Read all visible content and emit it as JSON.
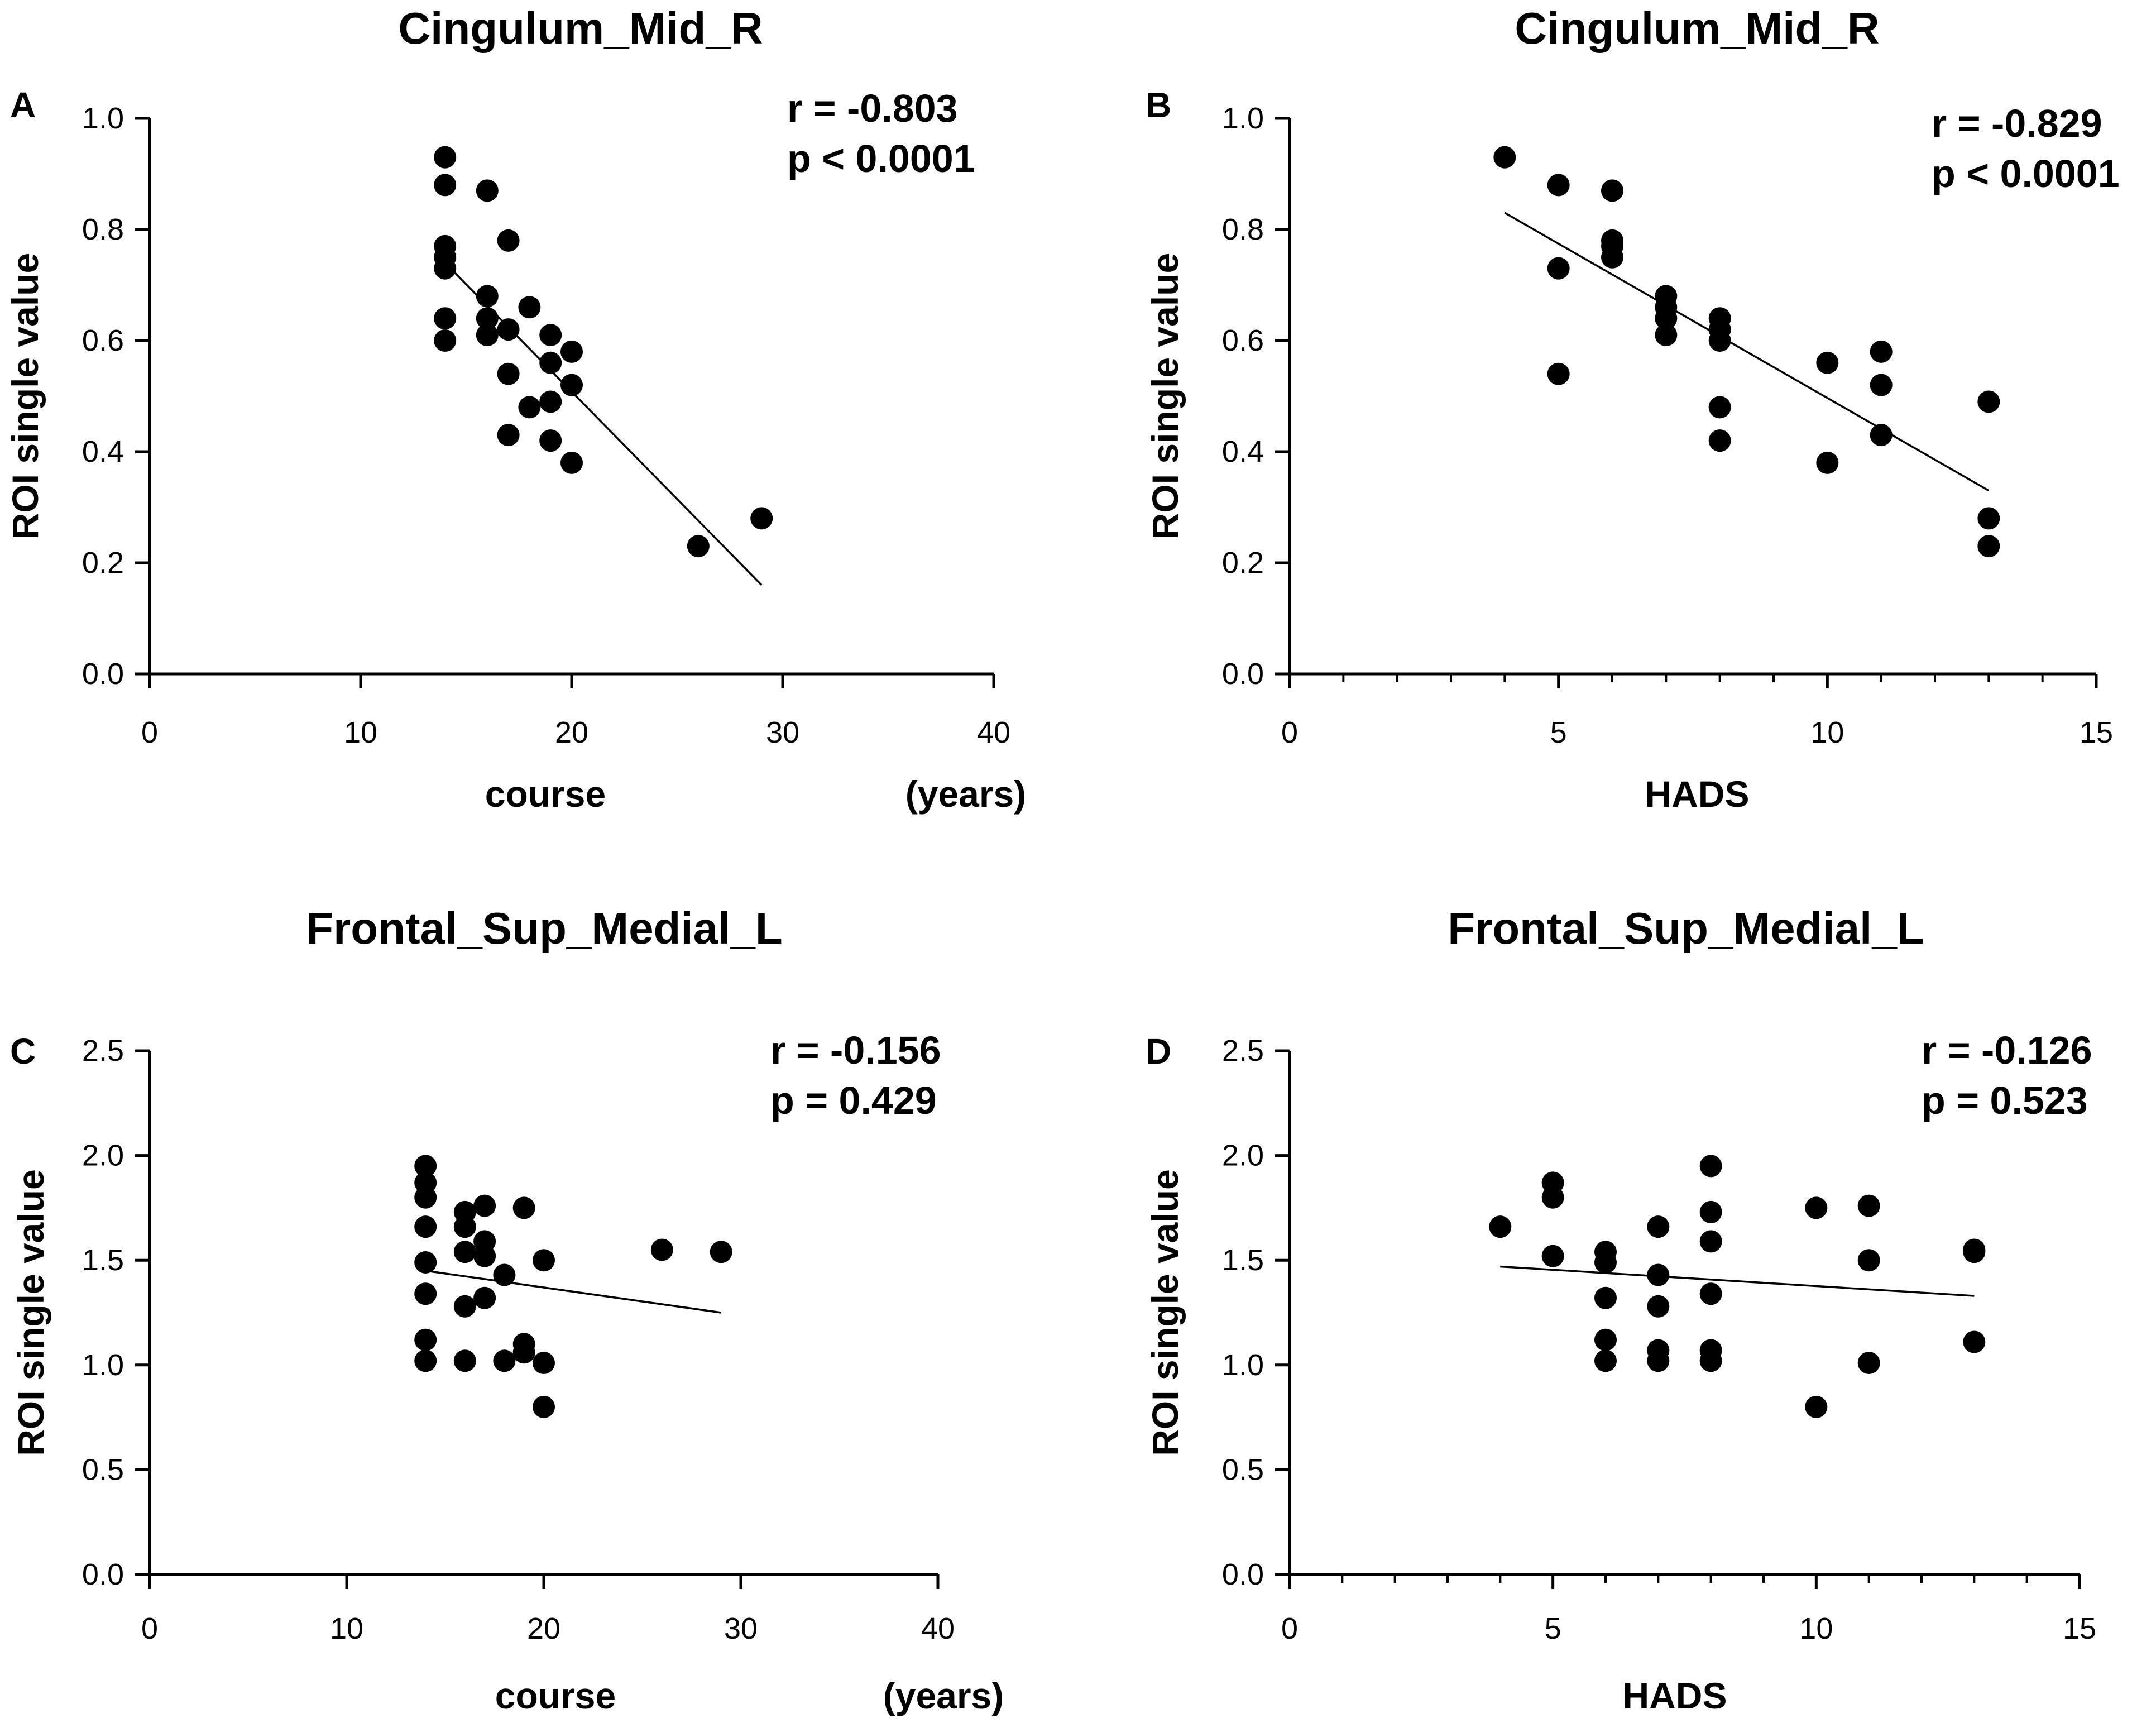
{
  "figure": {
    "style": {
      "point_color": "#000000",
      "line_color": "#000000",
      "background": "#ffffff"
    }
  },
  "chart_data": [
    {
      "type": "scatter",
      "panel": "A",
      "title": "Cingulum_Mid_R",
      "xlabel": "course",
      "xunit": "(years)",
      "ylabel": "ROI single value",
      "xlim": [
        0,
        40
      ],
      "ylim": [
        0,
        1.0
      ],
      "xticks": [
        0,
        10,
        20,
        30,
        40
      ],
      "xtick_labels": [
        "0",
        "10",
        "20",
        "30",
        "40"
      ],
      "yticks": [
        0,
        0.2,
        0.4,
        0.6,
        0.8,
        1.0
      ],
      "ytick_labels": [
        "0.0",
        "0.2",
        "0.4",
        "0.6",
        "0.8",
        "1.0"
      ],
      "x_minor_ticks": [],
      "r_text": "r = -0.803",
      "p_text": "p < 0.0001",
      "points": [
        {
          "x": 14,
          "y": 0.93
        },
        {
          "x": 14,
          "y": 0.88
        },
        {
          "x": 14,
          "y": 0.77
        },
        {
          "x": 14,
          "y": 0.75
        },
        {
          "x": 14,
          "y": 0.73
        },
        {
          "x": 14,
          "y": 0.64
        },
        {
          "x": 14,
          "y": 0.6
        },
        {
          "x": 16,
          "y": 0.87
        },
        {
          "x": 16,
          "y": 0.68
        },
        {
          "x": 16,
          "y": 0.64
        },
        {
          "x": 16,
          "y": 0.61
        },
        {
          "x": 17,
          "y": 0.78
        },
        {
          "x": 17,
          "y": 0.62
        },
        {
          "x": 17,
          "y": 0.54
        },
        {
          "x": 17,
          "y": 0.43
        },
        {
          "x": 18,
          "y": 0.66
        },
        {
          "x": 18,
          "y": 0.48
        },
        {
          "x": 19,
          "y": 0.61
        },
        {
          "x": 19,
          "y": 0.56
        },
        {
          "x": 19,
          "y": 0.49
        },
        {
          "x": 19,
          "y": 0.42
        },
        {
          "x": 20,
          "y": 0.58
        },
        {
          "x": 20,
          "y": 0.52
        },
        {
          "x": 20,
          "y": 0.38
        },
        {
          "x": 26,
          "y": 0.23
        },
        {
          "x": 29,
          "y": 0.28
        }
      ],
      "fit": {
        "x": [
          14,
          29
        ],
        "y": [
          0.74,
          0.16
        ]
      }
    },
    {
      "type": "scatter",
      "panel": "B",
      "title": "Cingulum_Mid_R",
      "xlabel": "HADS",
      "xunit": "",
      "ylabel": "ROI single value",
      "xlim": [
        0,
        15
      ],
      "ylim": [
        0,
        1.0
      ],
      "xticks": [
        0,
        5,
        10,
        15
      ],
      "xtick_labels": [
        "0",
        "5",
        "10",
        "15"
      ],
      "yticks": [
        0,
        0.2,
        0.4,
        0.6,
        0.8,
        1.0
      ],
      "ytick_labels": [
        "0.0",
        "0.2",
        "0.4",
        "0.6",
        "0.8",
        "1.0"
      ],
      "x_minor_ticks": [
        1,
        2,
        3,
        4,
        6,
        7,
        8,
        9,
        11,
        12,
        13,
        14
      ],
      "r_text": "r = -0.829",
      "p_text": "p < 0.0001",
      "points": [
        {
          "x": 4,
          "y": 0.93
        },
        {
          "x": 5,
          "y": 0.88
        },
        {
          "x": 5,
          "y": 0.73
        },
        {
          "x": 5,
          "y": 0.54
        },
        {
          "x": 6,
          "y": 0.87
        },
        {
          "x": 6,
          "y": 0.78
        },
        {
          "x": 6,
          "y": 0.77
        },
        {
          "x": 6,
          "y": 0.75
        },
        {
          "x": 7,
          "y": 0.68
        },
        {
          "x": 7,
          "y": 0.66
        },
        {
          "x": 7,
          "y": 0.64
        },
        {
          "x": 7,
          "y": 0.61
        },
        {
          "x": 8,
          "y": 0.64
        },
        {
          "x": 8,
          "y": 0.62
        },
        {
          "x": 8,
          "y": 0.6
        },
        {
          "x": 8,
          "y": 0.48
        },
        {
          "x": 8,
          "y": 0.42
        },
        {
          "x": 10,
          "y": 0.56
        },
        {
          "x": 10,
          "y": 0.38
        },
        {
          "x": 11,
          "y": 0.58
        },
        {
          "x": 11,
          "y": 0.52
        },
        {
          "x": 11,
          "y": 0.43
        },
        {
          "x": 13,
          "y": 0.49
        },
        {
          "x": 13,
          "y": 0.28
        },
        {
          "x": 13,
          "y": 0.23
        }
      ],
      "fit": {
        "x": [
          4,
          13
        ],
        "y": [
          0.83,
          0.33
        ]
      }
    },
    {
      "type": "scatter",
      "panel": "C",
      "title": "Frontal_Sup_Medial_L",
      "xlabel": "course",
      "xunit": "(years)",
      "ylabel": "ROI single value",
      "xlim": [
        0,
        40
      ],
      "ylim": [
        0,
        2.5
      ],
      "xticks": [
        0,
        10,
        20,
        30,
        40
      ],
      "xtick_labels": [
        "0",
        "10",
        "20",
        "30",
        "40"
      ],
      "yticks": [
        0,
        0.5,
        1.0,
        1.5,
        2.0,
        2.5
      ],
      "ytick_labels": [
        "0.0",
        "0.5",
        "1.0",
        "1.5",
        "2.0",
        "2.5"
      ],
      "x_minor_ticks": [],
      "r_text": "r = -0.156",
      "p_text": "p = 0.429",
      "points": [
        {
          "x": 14,
          "y": 1.95
        },
        {
          "x": 14,
          "y": 1.87
        },
        {
          "x": 14,
          "y": 1.8
        },
        {
          "x": 14,
          "y": 1.66
        },
        {
          "x": 14,
          "y": 1.49
        },
        {
          "x": 14,
          "y": 1.34
        },
        {
          "x": 14,
          "y": 1.12
        },
        {
          "x": 14,
          "y": 1.02
        },
        {
          "x": 16,
          "y": 1.73
        },
        {
          "x": 16,
          "y": 1.66
        },
        {
          "x": 16,
          "y": 1.54
        },
        {
          "x": 16,
          "y": 1.28
        },
        {
          "x": 16,
          "y": 1.02
        },
        {
          "x": 17,
          "y": 1.76
        },
        {
          "x": 17,
          "y": 1.59
        },
        {
          "x": 17,
          "y": 1.52
        },
        {
          "x": 17,
          "y": 1.32
        },
        {
          "x": 18,
          "y": 1.43
        },
        {
          "x": 18,
          "y": 1.02
        },
        {
          "x": 19,
          "y": 1.75
        },
        {
          "x": 19,
          "y": 1.1
        },
        {
          "x": 19,
          "y": 1.06
        },
        {
          "x": 20,
          "y": 1.5
        },
        {
          "x": 20,
          "y": 1.01
        },
        {
          "x": 20,
          "y": 0.8
        },
        {
          "x": 26,
          "y": 1.55
        },
        {
          "x": 29,
          "y": 1.54
        }
      ],
      "fit": {
        "x": [
          14,
          29
        ],
        "y": [
          1.45,
          1.25
        ]
      }
    },
    {
      "type": "scatter",
      "panel": "D",
      "title": "Frontal_Sup_Medial_L",
      "xlabel": "HADS",
      "xunit": "",
      "ylabel": "ROI single value",
      "xlim": [
        0,
        15
      ],
      "ylim": [
        0,
        2.5
      ],
      "xticks": [
        0,
        5,
        10,
        15
      ],
      "xtick_labels": [
        "0",
        "5",
        "10",
        "15"
      ],
      "yticks": [
        0,
        0.5,
        1.0,
        1.5,
        2.0,
        2.5
      ],
      "ytick_labels": [
        "0.0",
        "0.5",
        "1.0",
        "1.5",
        "2.0",
        "2.5"
      ],
      "x_minor_ticks": [
        1,
        2,
        3,
        4,
        6,
        7,
        8,
        9,
        11,
        12,
        13,
        14
      ],
      "r_text": "r = -0.126",
      "p_text": "p = 0.523",
      "points": [
        {
          "x": 4,
          "y": 1.66
        },
        {
          "x": 5,
          "y": 1.87
        },
        {
          "x": 5,
          "y": 1.8
        },
        {
          "x": 5,
          "y": 1.52
        },
        {
          "x": 6,
          "y": 1.54
        },
        {
          "x": 6,
          "y": 1.49
        },
        {
          "x": 6,
          "y": 1.32
        },
        {
          "x": 6,
          "y": 1.12
        },
        {
          "x": 6,
          "y": 1.02
        },
        {
          "x": 7,
          "y": 1.66
        },
        {
          "x": 7,
          "y": 1.43
        },
        {
          "x": 7,
          "y": 1.28
        },
        {
          "x": 7,
          "y": 1.07
        },
        {
          "x": 7,
          "y": 1.02
        },
        {
          "x": 8,
          "y": 1.95
        },
        {
          "x": 8,
          "y": 1.73
        },
        {
          "x": 8,
          "y": 1.59
        },
        {
          "x": 8,
          "y": 1.34
        },
        {
          "x": 8,
          "y": 1.07
        },
        {
          "x": 8,
          "y": 1.02
        },
        {
          "x": 10,
          "y": 1.75
        },
        {
          "x": 10,
          "y": 0.8
        },
        {
          "x": 11,
          "y": 1.76
        },
        {
          "x": 11,
          "y": 1.5
        },
        {
          "x": 11,
          "y": 1.01
        },
        {
          "x": 13,
          "y": 1.55
        },
        {
          "x": 13,
          "y": 1.54
        },
        {
          "x": 13,
          "y": 1.11
        }
      ],
      "fit": {
        "x": [
          4,
          13
        ],
        "y": [
          1.47,
          1.33
        ]
      }
    }
  ]
}
